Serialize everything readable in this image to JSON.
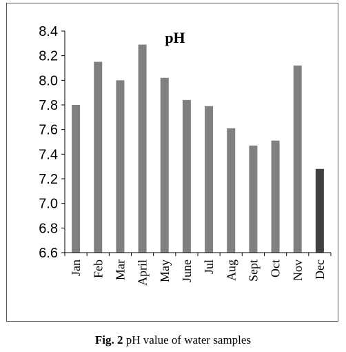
{
  "chart_data": {
    "type": "bar",
    "title": "pH",
    "categories": [
      "Jan",
      "Feb",
      "Mar",
      "April",
      "May",
      "June",
      "Jul",
      "Aug",
      "Sept",
      "Oct",
      "Nov",
      "Dec"
    ],
    "values": [
      7.8,
      8.15,
      8.0,
      8.29,
      8.02,
      7.84,
      7.79,
      7.61,
      7.47,
      7.51,
      8.12,
      7.28
    ],
    "ylim": [
      6.6,
      8.4
    ],
    "yticks": [
      "6.6",
      "6.8",
      "7.0",
      "7.2",
      "7.4",
      "7.6",
      "7.8",
      "8.0",
      "8.2",
      "8.4"
    ],
    "xlabel": "",
    "ylabel": "",
    "colors": {
      "bar": "#808080",
      "highlight": "#404040",
      "axis": "#000000"
    },
    "highlight_index": 11,
    "grid": false
  },
  "caption": {
    "prefix": "Fig. 2",
    "text": " pH value of water samples"
  }
}
